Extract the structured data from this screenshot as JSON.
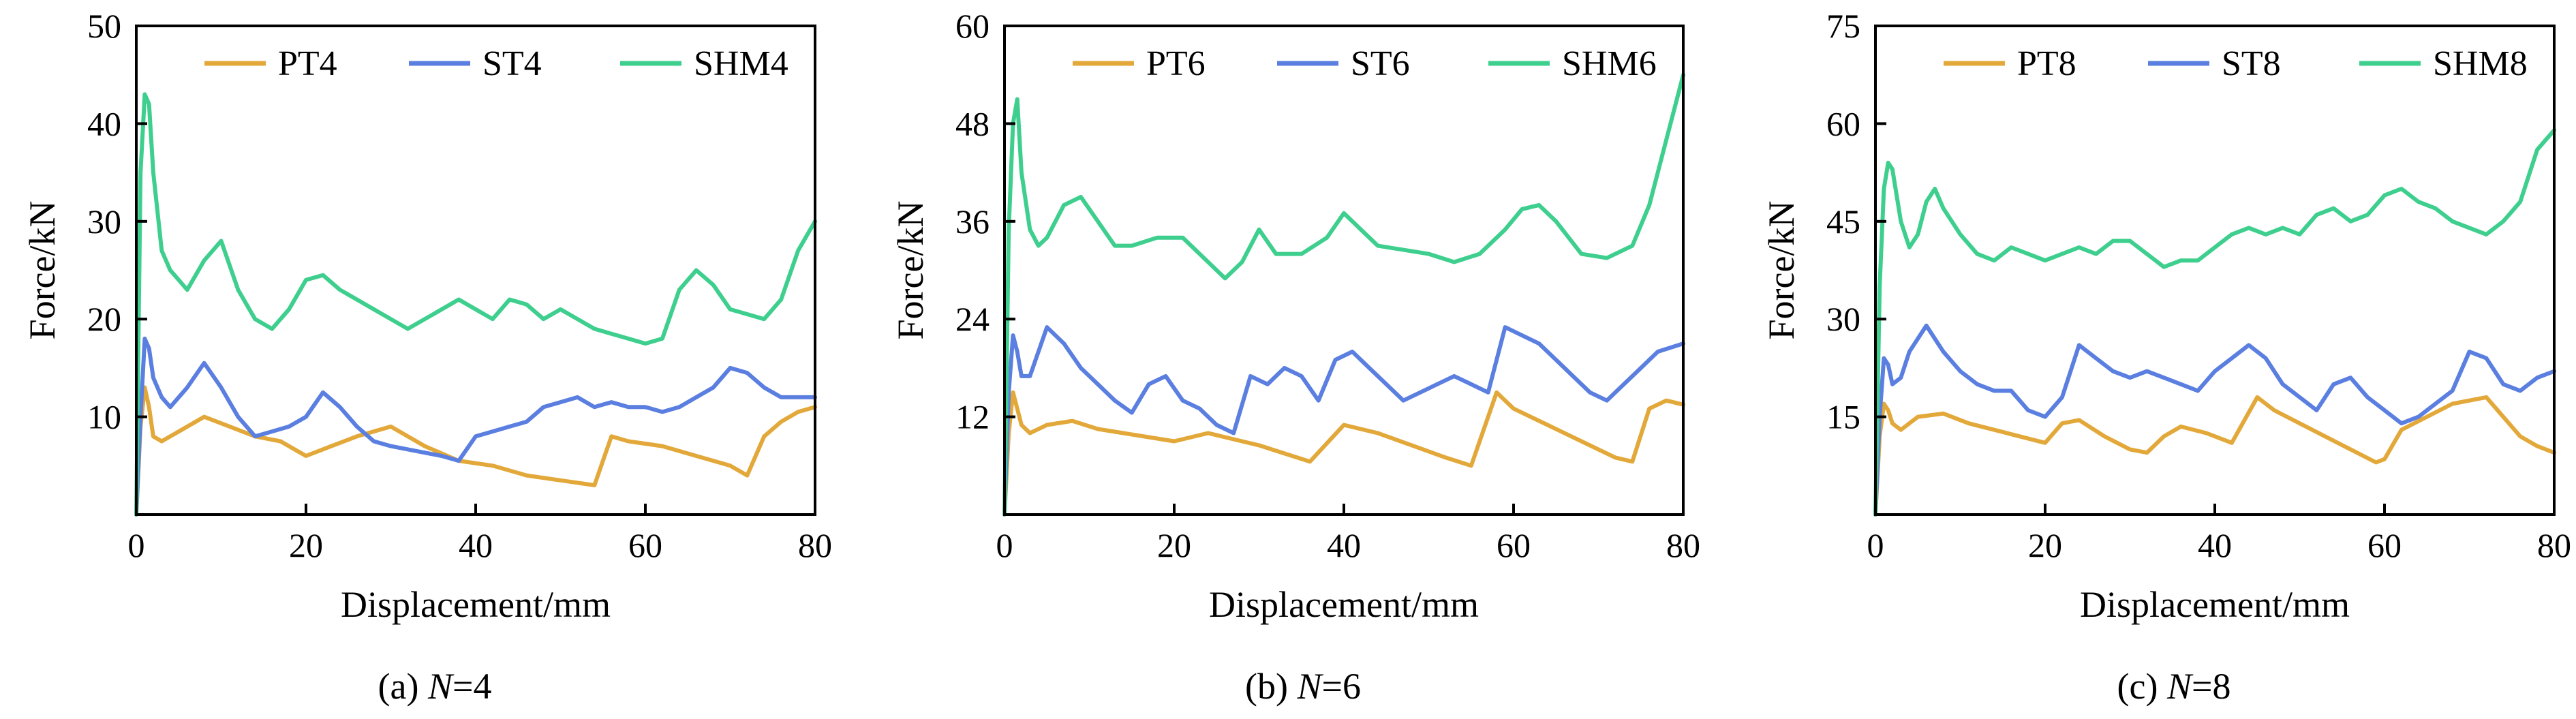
{
  "colors": {
    "PT": "#e3a83a",
    "ST": "#5b7fe0",
    "SHM": "#3ecf8e",
    "axis": "#000000"
  },
  "chart_data": [
    {
      "type": "line",
      "caption_prefix": "(a) ",
      "caption_var": "N",
      "caption_suffix": "=4",
      "xlabel": "Displacement/mm",
      "ylabel": "Force/kN",
      "xlim": [
        0,
        80
      ],
      "ylim": [
        0,
        50
      ],
      "xticks": [
        0,
        20,
        40,
        60,
        80
      ],
      "yticks": [
        10,
        20,
        30,
        40,
        50
      ],
      "legend": "top",
      "series": [
        {
          "name": "PT4",
          "key": "PT",
          "x": [
            0,
            0.5,
            1,
            1.5,
            2,
            3,
            5,
            8,
            11,
            14,
            17,
            20,
            23,
            26,
            30,
            34,
            38,
            42,
            46,
            50,
            54,
            56,
            58,
            62,
            66,
            70,
            72,
            74,
            76,
            78,
            80
          ],
          "y": [
            0,
            9,
            13,
            11,
            8,
            7.5,
            8.5,
            10,
            9,
            8,
            7.5,
            6,
            7,
            8,
            9,
            7,
            5.5,
            5,
            4,
            3.5,
            3,
            8,
            7.5,
            7,
            6,
            5,
            4,
            8,
            9.5,
            10.5,
            11
          ]
        },
        {
          "name": "ST4",
          "key": "ST",
          "x": [
            0,
            0.5,
            1,
            1.5,
            2,
            3,
            4,
            6,
            8,
            10,
            12,
            14,
            16,
            18,
            20,
            22,
            24,
            26,
            28,
            30,
            33,
            36,
            38,
            40,
            42,
            44,
            46,
            48,
            50,
            52,
            54,
            56,
            58,
            60,
            62,
            64,
            66,
            68,
            70,
            72,
            74,
            76,
            78,
            80
          ],
          "y": [
            0,
            10,
            18,
            17,
            14,
            12,
            11,
            13,
            15.5,
            13,
            10,
            8,
            8.5,
            9,
            10,
            12.5,
            11,
            9,
            7.5,
            7,
            6.5,
            6,
            5.5,
            8,
            8.5,
            9,
            9.5,
            11,
            11.5,
            12,
            11,
            11.5,
            11,
            11,
            10.5,
            11,
            12,
            13,
            15,
            14.5,
            13,
            12,
            12,
            12
          ]
        },
        {
          "name": "SHM4",
          "key": "SHM",
          "x": [
            0,
            0.5,
            1,
            1.5,
            2,
            3,
            4,
            5,
            6,
            8,
            10,
            12,
            14,
            16,
            18,
            20,
            22,
            24,
            26,
            28,
            30,
            32,
            34,
            36,
            38,
            40,
            42,
            44,
            46,
            48,
            50,
            52,
            54,
            56,
            58,
            60,
            62,
            64,
            66,
            68,
            70,
            72,
            74,
            76,
            78,
            80
          ],
          "y": [
            0,
            35,
            43,
            42,
            35,
            27,
            25,
            24,
            23,
            26,
            28,
            23,
            20,
            19,
            21,
            24,
            24.5,
            23,
            22,
            21,
            20,
            19,
            20,
            21,
            22,
            21,
            20,
            22,
            21.5,
            20,
            21,
            20,
            19,
            18.5,
            18,
            17.5,
            18,
            23,
            25,
            23.5,
            21,
            20.5,
            20,
            22,
            27,
            30
          ]
        }
      ]
    },
    {
      "type": "line",
      "caption_prefix": "(b) ",
      "caption_var": "N",
      "caption_suffix": "=6",
      "xlabel": "Displacement/mm",
      "ylabel": "Force/kN",
      "xlim": [
        0,
        80
      ],
      "ylim": [
        0,
        60
      ],
      "xticks": [
        0,
        20,
        40,
        60,
        80
      ],
      "yticks": [
        12,
        24,
        36,
        48,
        60
      ],
      "legend": "top",
      "series": [
        {
          "name": "PT6",
          "key": "PT",
          "x": [
            0,
            0.5,
            1,
            1.5,
            2,
            3,
            5,
            8,
            11,
            14,
            17,
            20,
            22,
            24,
            26,
            28,
            30,
            33,
            36,
            40,
            44,
            48,
            52,
            55,
            58,
            60,
            64,
            68,
            72,
            74,
            76,
            78,
            80
          ],
          "y": [
            0,
            10,
            15,
            13,
            11,
            10,
            11,
            11.5,
            10.5,
            10,
            9.5,
            9,
            9.5,
            10,
            9.5,
            9,
            8.5,
            7.5,
            6.5,
            11,
            10,
            8.5,
            7,
            6,
            15,
            13,
            11,
            9,
            7,
            6.5,
            13,
            14,
            13.5
          ]
        },
        {
          "name": "ST6",
          "key": "ST",
          "x": [
            0,
            0.5,
            1,
            1.5,
            2,
            3,
            5,
            7,
            9,
            11,
            13,
            15,
            17,
            19,
            21,
            23,
            25,
            27,
            29,
            31,
            33,
            35,
            37,
            39,
            41,
            43,
            45,
            47,
            49,
            51,
            53,
            55,
            57,
            59,
            61,
            63,
            65,
            67,
            69,
            71,
            73,
            75,
            77,
            80
          ],
          "y": [
            0,
            15,
            22,
            20,
            17,
            17,
            23,
            21,
            18,
            16,
            14,
            12.5,
            16,
            17,
            14,
            13,
            11,
            10,
            17,
            16,
            18,
            17,
            14,
            19,
            20,
            18,
            16,
            14,
            15,
            16,
            17,
            16,
            15,
            23,
            22,
            21,
            19,
            17,
            15,
            14,
            16,
            18,
            20,
            21
          ]
        },
        {
          "name": "SHM6",
          "key": "SHM",
          "x": [
            0,
            0.5,
            1,
            1.5,
            2,
            3,
            4,
            5,
            7,
            9,
            11,
            13,
            15,
            18,
            21,
            24,
            26,
            28,
            30,
            32,
            35,
            38,
            40,
            42,
            44,
            47,
            50,
            53,
            56,
            59,
            61,
            63,
            65,
            68,
            71,
            74,
            76,
            78,
            80
          ],
          "y": [
            0,
            35,
            48,
            51,
            42,
            35,
            33,
            34,
            38,
            39,
            36,
            33,
            33,
            34,
            34,
            31,
            29,
            31,
            35,
            32,
            32,
            34,
            37,
            35,
            33,
            32.5,
            32,
            31,
            32,
            35,
            37.5,
            38,
            36,
            32,
            31.5,
            33,
            38,
            46,
            54
          ]
        }
      ]
    },
    {
      "type": "line",
      "caption_prefix": "(c) ",
      "caption_var": "N",
      "caption_suffix": "=8",
      "xlabel": "Displacement/mm",
      "ylabel": "Force/kN",
      "xlim": [
        0,
        80
      ],
      "ylim": [
        0,
        75
      ],
      "xticks": [
        0,
        20,
        40,
        60,
        80
      ],
      "yticks": [
        15,
        30,
        45,
        60,
        75
      ],
      "legend": "top",
      "series": [
        {
          "name": "PT8",
          "key": "PT",
          "x": [
            0,
            0.5,
            1,
            1.5,
            2,
            3,
            5,
            8,
            11,
            14,
            17,
            20,
            22,
            24,
            27,
            30,
            32,
            34,
            36,
            39,
            42,
            45,
            47,
            50,
            53,
            56,
            59,
            60,
            62,
            65,
            68,
            70,
            72,
            74,
            76,
            78,
            80
          ],
          "y": [
            0,
            12,
            17,
            16,
            14,
            13,
            15,
            15.5,
            14,
            13,
            12,
            11,
            14,
            14.5,
            12,
            10,
            9.5,
            12,
            13.5,
            12.5,
            11,
            18,
            16,
            14,
            12,
            10,
            8,
            8.5,
            13,
            15,
            17,
            17.5,
            18,
            15,
            12,
            10.5,
            9.5
          ]
        },
        {
          "name": "ST8",
          "key": "ST",
          "x": [
            0,
            0.5,
            1,
            1.5,
            2,
            3,
            4,
            6,
            8,
            10,
            12,
            14,
            16,
            18,
            20,
            22,
            24,
            26,
            28,
            30,
            32,
            34,
            36,
            38,
            40,
            42,
            44,
            46,
            48,
            50,
            52,
            54,
            56,
            58,
            60,
            62,
            64,
            66,
            68,
            70,
            72,
            74,
            76,
            78,
            80
          ],
          "y": [
            0,
            15,
            24,
            23,
            20,
            21,
            25,
            29,
            25,
            22,
            20,
            19,
            19,
            16,
            15,
            18,
            26,
            24,
            22,
            21,
            22,
            21,
            20,
            19,
            22,
            24,
            26,
            24,
            20,
            18,
            16,
            20,
            21,
            18,
            16,
            14,
            15,
            17,
            19,
            25,
            24,
            20,
            19,
            21,
            22
          ]
        },
        {
          "name": "SHM8",
          "key": "SHM",
          "x": [
            0,
            0.5,
            1,
            1.5,
            2,
            3,
            4,
            5,
            6,
            7,
            8,
            10,
            12,
            14,
            16,
            18,
            20,
            22,
            24,
            26,
            28,
            30,
            32,
            34,
            36,
            38,
            40,
            42,
            44,
            46,
            48,
            50,
            52,
            54,
            56,
            58,
            60,
            62,
            64,
            66,
            68,
            70,
            72,
            74,
            76,
            78,
            80
          ],
          "y": [
            0,
            35,
            50,
            54,
            53,
            45,
            41,
            43,
            48,
            50,
            47,
            43,
            40,
            39,
            41,
            40,
            39,
            40,
            41,
            40,
            42,
            42,
            40,
            38,
            39,
            39,
            41,
            43,
            44,
            43,
            44,
            43,
            46,
            47,
            45,
            46,
            49,
            50,
            48,
            47,
            45,
            44,
            43,
            45,
            48,
            56,
            59
          ]
        }
      ]
    }
  ]
}
